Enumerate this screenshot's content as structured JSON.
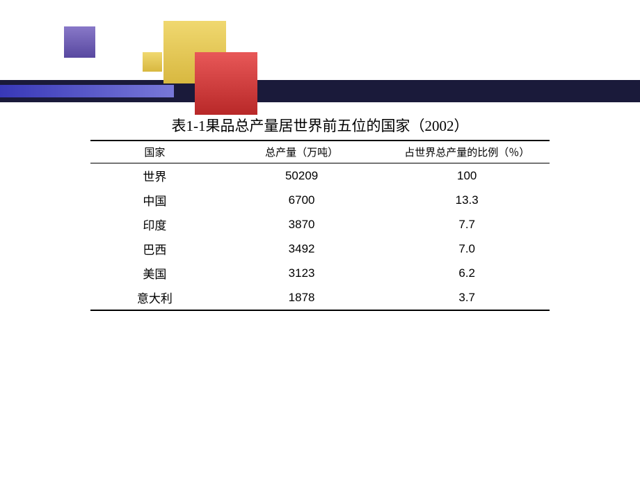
{
  "decor": {
    "bar_dark": "#1a1a3a",
    "bar_grad_from": "#3838b8",
    "bar_grad_to": "#7878d8",
    "sq_yellow_from": "#f0d870",
    "sq_yellow_to": "#d8b840",
    "sq_red_from": "#e85858",
    "sq_red_to": "#b82828",
    "sq_purple_from": "#8878c8",
    "sq_purple_to": "#5848a0"
  },
  "table": {
    "title": "表1-1果品总产量居世界前五位的国家（2002）",
    "title_fontsize": 21,
    "header_fontsize": 15,
    "cell_fontsize": 17,
    "border_color": "#000000",
    "text_color": "#000000",
    "columns": [
      "国家",
      "总产量（万吨）",
      "占世界总产量的比例（％）"
    ],
    "col_widths_pct": [
      28,
      36,
      36
    ],
    "rows": [
      [
        "世界",
        "50209",
        "100"
      ],
      [
        "中国",
        "6700",
        "13.3"
      ],
      [
        "印度",
        "3870",
        "7.7"
      ],
      [
        "巴西",
        "3492",
        "7.0"
      ],
      [
        "美国",
        "3123",
        "6.2"
      ],
      [
        "意大利",
        "1878",
        "3.7"
      ]
    ]
  }
}
